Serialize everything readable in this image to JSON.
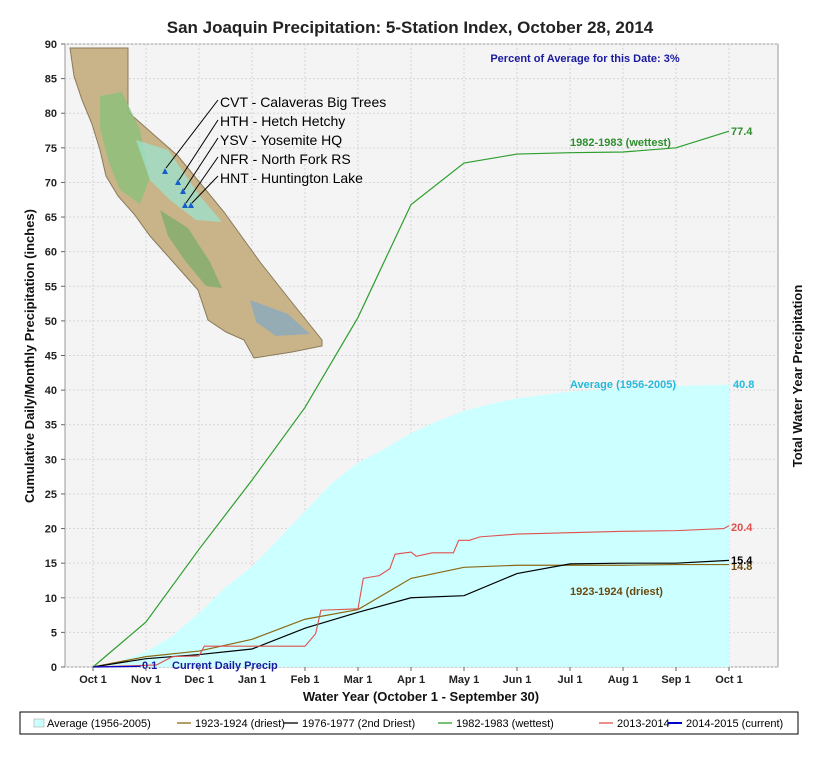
{
  "chart_data": {
    "type": "line",
    "title": "San Joaquin Precipitation: 5-Station Index, October 28, 2014",
    "xlabel": "Water Year (October 1 - September 30)",
    "ylabel": "Cumulative Daily/Monthly Precipitation (inches)",
    "y2label": "Total Water Year Precipitation",
    "ylim": [
      0,
      90
    ],
    "y_ticks": [
      0,
      5,
      10,
      15,
      20,
      25,
      30,
      35,
      40,
      45,
      50,
      55,
      60,
      65,
      70,
      75,
      80,
      85,
      90
    ],
    "x_ticks": [
      "Oct 1",
      "Nov 1",
      "Dec 1",
      "Jan 1",
      "Feb 1",
      "Mar 1",
      "Apr 1",
      "May 1",
      "Jun 1",
      "Jul 1",
      "Aug 1",
      "Sep 1",
      "Oct 1"
    ],
    "grid": true,
    "percent_of_average": "Percent of Average for this Date: 3%",
    "series": [
      {
        "name": "Average (1956-2005)",
        "style": "area",
        "color": "#ccffff",
        "label": "Average (1956-2005)",
        "end_value": "40.8",
        "x": [
          0,
          0.5,
          1,
          1.5,
          2,
          2.5,
          3,
          3.5,
          4,
          4.5,
          5,
          5.5,
          6,
          6.5,
          7,
          7.5,
          8,
          8.5,
          9,
          10,
          11,
          12
        ],
        "y": [
          0,
          0.8,
          2.2,
          4.5,
          7.8,
          11.5,
          14.5,
          18.5,
          22.5,
          26.5,
          29.5,
          31.5,
          33.8,
          35.5,
          37.0,
          38.0,
          38.8,
          39.3,
          39.8,
          40.3,
          40.6,
          40.8
        ]
      },
      {
        "name": "1923-1924 (driest)",
        "style": "line",
        "color": "#8b6914",
        "label": "1923-1924 (driest)",
        "end_value": "14.8",
        "x": [
          0,
          1,
          2,
          3,
          4,
          5,
          6,
          7,
          8,
          9,
          10,
          11,
          12
        ],
        "y": [
          0,
          1.5,
          2.3,
          4.0,
          6.9,
          8.3,
          12.8,
          14.4,
          14.7,
          14.7,
          14.7,
          14.8,
          14.8
        ]
      },
      {
        "name": "1976-1977 (2nd Driest)",
        "style": "line",
        "color": "#000000",
        "end_value": "15.4",
        "x": [
          0,
          1,
          2,
          3,
          4,
          5,
          6,
          7,
          8,
          9,
          10,
          11,
          12
        ],
        "y": [
          0,
          1.2,
          1.8,
          2.6,
          5.6,
          7.9,
          10.0,
          10.3,
          13.5,
          14.9,
          15.0,
          15.0,
          15.4
        ]
      },
      {
        "name": "1982-1983 (wettest)",
        "style": "line",
        "color": "#2e9e2e",
        "label": "1982-1983 (wettest)",
        "end_value": "77.4",
        "x": [
          0,
          1,
          2,
          3,
          4,
          5,
          6,
          7,
          8,
          9,
          10,
          11,
          12
        ],
        "y": [
          0,
          6.5,
          17.0,
          27.0,
          37.5,
          50.5,
          66.8,
          72.8,
          74.1,
          74.3,
          74.4,
          75.0,
          77.4
        ]
      },
      {
        "name": "2013-2014",
        "style": "step",
        "color": "#e05050",
        "end_value": "20.4",
        "x": [
          0,
          1.2,
          1.5,
          2.0,
          2.1,
          4.0,
          4.2,
          4.3,
          5.0,
          5.1,
          5.4,
          5.6,
          5.7,
          6.0,
          6.1,
          6.4,
          6.8,
          6.9,
          7.1,
          7.3,
          8.0,
          9.0,
          10.0,
          11.0,
          11.9,
          12.0
        ],
        "y": [
          0,
          0.3,
          1.5,
          1.6,
          3.0,
          3.0,
          4.8,
          8.2,
          8.4,
          12.8,
          13.2,
          14.2,
          16.3,
          16.6,
          16.0,
          16.5,
          16.5,
          18.3,
          18.3,
          18.8,
          19.2,
          19.4,
          19.6,
          19.7,
          20.0,
          20.4
        ]
      },
      {
        "name": "2014-2015 (current)",
        "style": "line",
        "color": "#0000cc",
        "label": "Current Daily Precip",
        "end_value": "0.1",
        "x": [
          0,
          0.9
        ],
        "y": [
          0,
          0.1
        ]
      }
    ],
    "stations": [
      "CVT - Calaveras Big Trees",
      "HTH - Hetch Hetchy",
      "YSV - Yosemite HQ",
      "NFR - North Fork RS",
      "HNT - Huntington Lake"
    ],
    "legend": [
      {
        "label": "Average (1956-2005)",
        "color": "#ccffff"
      },
      {
        "label": "1923-1924 (driest)",
        "color": "#8b6914"
      },
      {
        "label": "1976-1977 (2nd Driest)",
        "color": "#000000"
      },
      {
        "label": "1982-1983 (wettest)",
        "color": "#2e9e2e"
      },
      {
        "label": "2013-2014",
        "color": "#e05050"
      },
      {
        "label": "2014-2015 (current)",
        "color": "#0000cc"
      }
    ],
    "legend_position": "bottom"
  }
}
